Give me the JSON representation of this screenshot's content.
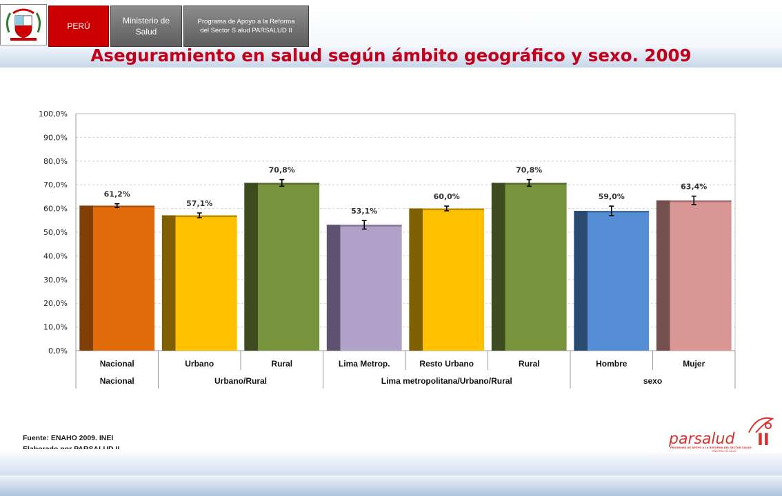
{
  "header": {
    "peru_label": "PERÚ",
    "ministerio_label": "Ministerio de Salud",
    "programa_label": "Programa de Apoyo a la Reforma del Sector S alud PARSALUD II",
    "crest_text": "REPÚBLICA DEL PERÚ"
  },
  "page_title": "Aseguramiento en salud según ámbito geográfico y sexo. 2009",
  "source": {
    "line1": "Fuente: ENAHO 2009. INEI",
    "line2": "Elaborado por PARSALUD II"
  },
  "logo": {
    "name": "parsalud",
    "numeral": "II",
    "tagline": "PROGRAMA DE APOYO A LA REFORMA DEL SECTOR SALUD",
    "subline": "MINISTERIO DE SALUD"
  },
  "colors": {
    "title": "#c0001a",
    "peru_red": "#cc0000",
    "grey_button": "#6f6f6f"
  },
  "chart_data": {
    "type": "bar",
    "title": "",
    "xlabel": "",
    "ylabel": "",
    "ylim": [
      0,
      100
    ],
    "ytick_step": 10,
    "ytick_labels": [
      "0,0%",
      "10,0%",
      "20,0%",
      "30,0%",
      "40,0%",
      "50,0%",
      "60,0%",
      "70,0%",
      "80,0%",
      "90,0%",
      "100,0%"
    ],
    "grid": true,
    "categories": [
      "Nacional",
      "Urbano",
      "Rural",
      "Lima Metrop.",
      "Resto Urbano",
      "Rural",
      "Hombre",
      "Mujer"
    ],
    "values": [
      61.2,
      57.1,
      70.8,
      53.1,
      60.0,
      70.8,
      59.0,
      63.4
    ],
    "data_labels": [
      "61,2%",
      "57,1%",
      "70,8%",
      "53,1%",
      "60,0%",
      "70,8%",
      "59,0%",
      "63,4%"
    ],
    "error_margin": [
      0.8,
      1.0,
      1.4,
      1.8,
      1.0,
      1.4,
      2.0,
      1.8
    ],
    "bar_colors": [
      "#e36c0a",
      "#ffc000",
      "#77933c",
      "#b1a0c7",
      "#ffc000",
      "#77933c",
      "#558ed5",
      "#d99694"
    ],
    "bar_shadow_colors": [
      "#7f3f07",
      "#7f6000",
      "#3d4b1f",
      "#5e5270",
      "#7f6000",
      "#3d4b1f",
      "#2b4a70",
      "#734f4e"
    ],
    "groups": [
      {
        "label": "Nacional",
        "span": 1
      },
      {
        "label": "Urbano/Rural",
        "span": 2
      },
      {
        "label": "Lima metropolitana/Urbano/Rural",
        "span": 3
      },
      {
        "label": "sexo",
        "span": 2
      }
    ]
  }
}
